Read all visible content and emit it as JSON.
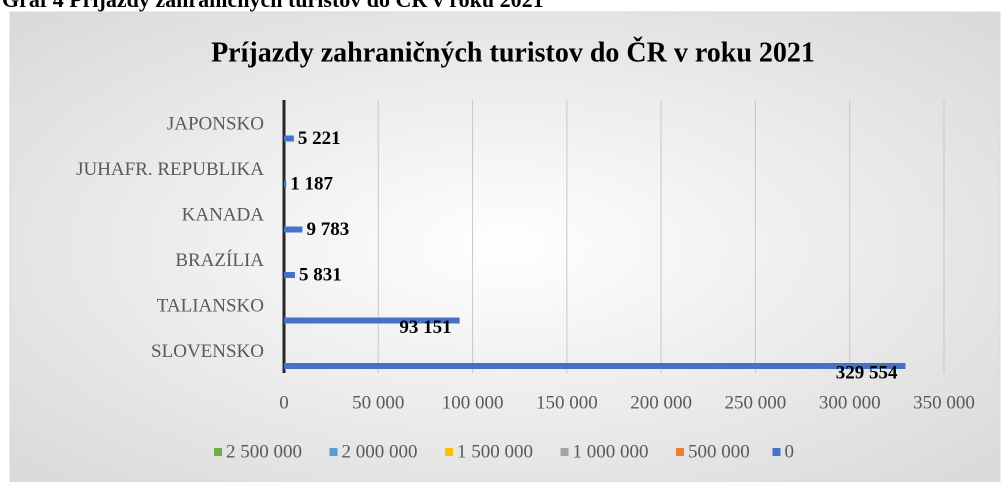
{
  "caption": "Graf 4 Príjazdy zahraničných turistov do ČR v roku 2021",
  "chart_data": {
    "type": "bar",
    "orientation": "horizontal",
    "title": "Príjazdy zahraničných turistov do ČR v roku 2021",
    "categories": [
      "SLOVENSKO",
      "TALIANSKO",
      "BRAZÍLIA",
      "KANADA",
      "JUHAFR. REPUBLIKA",
      "JAPONSKO"
    ],
    "values": [
      329554,
      93151,
      5831,
      9783,
      1187,
      5221
    ],
    "value_labels": [
      "329 554",
      "93 151",
      "5 831",
      "9 783",
      "1 187",
      "5 221"
    ],
    "color": "#4472c4",
    "xlim": [
      0,
      350000
    ],
    "xticks": [
      0,
      {
        "value": 50000,
        "label": "50 000"
      },
      {
        "value": 100000,
        "label": "100 000"
      },
      {
        "value": 150000,
        "label": "150 000"
      },
      {
        "value": 200000,
        "label": "200 000"
      },
      {
        "value": 250000,
        "label": "250 000"
      },
      {
        "value": 300000,
        "label": "300 000"
      },
      {
        "value": 350000,
        "label": "350 000"
      }
    ],
    "grid": true,
    "legend": [
      {
        "name": "2 500 000",
        "color": "#70ad47"
      },
      {
        "name": "2 000 000",
        "color": "#5b9bd5"
      },
      {
        "name": "1 500 000",
        "color": "#ffc000"
      },
      {
        "name": "1 000 000",
        "color": "#a5a5a5"
      },
      {
        "name": "500 000",
        "color": "#ed7d31"
      },
      {
        "name": "0",
        "color": "#4472c4"
      }
    ]
  }
}
